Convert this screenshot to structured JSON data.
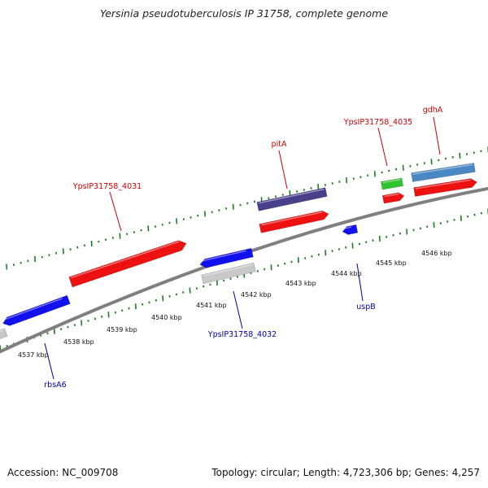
{
  "title": "Yersinia pseudotuberculosis IP 31758, complete genome",
  "footer": {
    "accession": "Accession: NC_009708",
    "summary": "Topology: circular; Length: 4,723,306 bp; Genes: 4,257"
  },
  "colors": {
    "backbone": "#7f7f7f",
    "tick": "#1f7a1f",
    "forward_label": "#cc0000",
    "reverse_label": "#0000aa",
    "red": "#ee1111",
    "blue": "#1111ee",
    "navy": "#4a3f8a",
    "steel": "#4a88c4",
    "green": "#2ec42e",
    "gray": "#c8c8c8"
  },
  "scale": {
    "unit": "kbp",
    "labels": [
      "4537 kbp",
      "4538 kbp",
      "4539 kbp",
      "4540 kbp",
      "4541 kbp",
      "4542 kbp",
      "4543 kbp",
      "4544 kbp",
      "4545 kbp",
      "4546 kbp"
    ]
  },
  "features": [
    {
      "name": "YpsIP31758_4031",
      "strand": "forward",
      "color": "red",
      "labelled": true
    },
    {
      "name": "pitA",
      "strand": "forward",
      "color": "red",
      "labelled": true
    },
    {
      "name": "pitA-track",
      "strand": "forward",
      "color": "navy",
      "labelled": false
    },
    {
      "name": "YpsIP31758_4035",
      "strand": "forward",
      "color": "red",
      "labelled": true
    },
    {
      "name": "YpsIP31758_4035-track",
      "strand": "forward",
      "color": "green",
      "labelled": false
    },
    {
      "name": "gdhA",
      "strand": "forward",
      "color": "red",
      "labelled": true
    },
    {
      "name": "gdhA-track",
      "strand": "forward",
      "color": "steel",
      "labelled": false
    },
    {
      "name": "YpsIP31758_4032",
      "strand": "reverse",
      "color": "blue",
      "labelled": true
    },
    {
      "name": "YpsIP31758_4032-track",
      "strand": "reverse",
      "color": "gray",
      "labelled": false
    },
    {
      "name": "uspB",
      "strand": "reverse",
      "color": "blue",
      "labelled": true
    },
    {
      "name": "rbsA6",
      "strand": "reverse",
      "color": "blue",
      "labelled": true
    },
    {
      "name": "rbsA6-track",
      "strand": "reverse",
      "color": "gray",
      "labelled": false
    }
  ]
}
